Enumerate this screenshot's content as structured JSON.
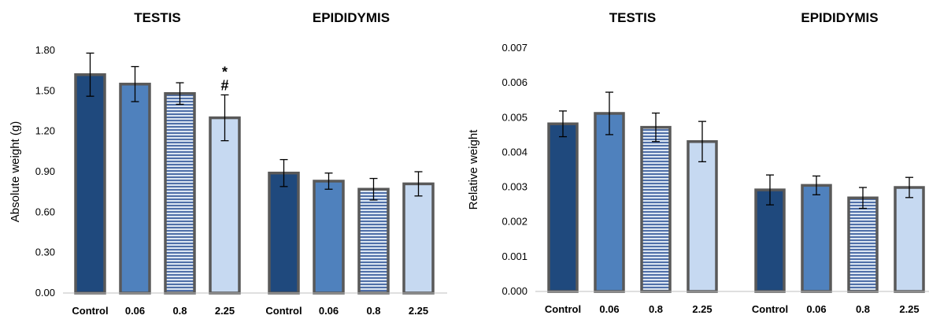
{
  "chart_data": [
    {
      "type": "bar",
      "ylabel": "Absolute weight (g)",
      "ylim": [
        0,
        1.8
      ],
      "yticks": [
        "0.00",
        "0.30",
        "0.60",
        "0.90",
        "1.20",
        "1.50",
        "1.80"
      ],
      "grid": false,
      "groups": [
        {
          "title": "TESTIS",
          "categories": [
            "Control",
            "0.06",
            "0.8",
            "2.25"
          ],
          "values": [
            1.62,
            1.55,
            1.48,
            1.3
          ],
          "errors": [
            0.16,
            0.13,
            0.08,
            0.17
          ],
          "annotations": [
            "",
            "",
            "",
            "*\n#"
          ]
        },
        {
          "title": "EPIDIDYMIS",
          "categories": [
            "Control",
            "0.06",
            "0.8",
            "2.25"
          ],
          "values": [
            0.89,
            0.83,
            0.77,
            0.81
          ],
          "errors": [
            0.1,
            0.06,
            0.08,
            0.09
          ],
          "annotations": [
            "",
            "",
            "",
            ""
          ]
        }
      ]
    },
    {
      "type": "bar",
      "ylabel": "Relative weight",
      "ylim": [
        0,
        0.007
      ],
      "yticks": [
        "0.000",
        "0.001",
        "0.002",
        "0.003",
        "0.004",
        "0.005",
        "0.006",
        "0.007"
      ],
      "grid": false,
      "groups": [
        {
          "title": "TESTIS",
          "categories": [
            "Control",
            "0.06",
            "0.8",
            "2.25"
          ],
          "values": [
            0.00482,
            0.00512,
            0.00472,
            0.00431
          ],
          "errors": [
            0.00037,
            0.00061,
            0.00041,
            0.00058
          ],
          "annotations": [
            "",
            "",
            "",
            ""
          ]
        },
        {
          "title": "EPIDIDYMIS",
          "categories": [
            "Control",
            "0.06",
            "0.8",
            "2.25"
          ],
          "values": [
            0.00292,
            0.00305,
            0.00269,
            0.00299
          ],
          "errors": [
            0.00043,
            0.00027,
            0.0003,
            0.00029
          ],
          "annotations": [
            "",
            "",
            "",
            ""
          ]
        }
      ]
    }
  ],
  "bar_styles": [
    {
      "fill": "#1f497d",
      "pattern": "solid"
    },
    {
      "fill": "#4f81bd",
      "pattern": "solid"
    },
    {
      "fill": "#dce6f2",
      "pattern": "horizontal-stripes",
      "stripe": "#4f6fa8"
    },
    {
      "fill": "#c6d9f1",
      "pattern": "solid"
    }
  ],
  "colors": {
    "bar_border": "#595959",
    "error_bar": "#000000",
    "axis": "#bfbfbf"
  }
}
